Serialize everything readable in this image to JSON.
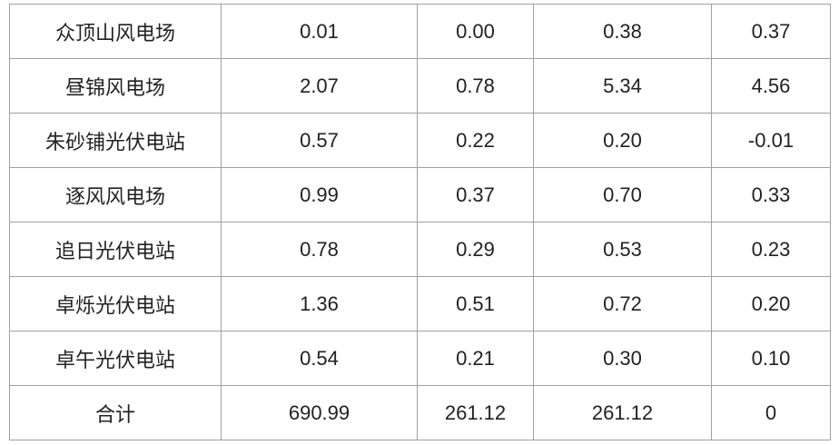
{
  "table": {
    "rows": [
      [
        "众顶山风电场",
        "0.01",
        "0.00",
        "0.38",
        "0.37"
      ],
      [
        "昼锦风电场",
        "2.07",
        "0.78",
        "5.34",
        "4.56"
      ],
      [
        "朱砂铺光伏电站",
        "0.57",
        "0.22",
        "0.20",
        "-0.01"
      ],
      [
        "逐风风电场",
        "0.99",
        "0.37",
        "0.70",
        "0.33"
      ],
      [
        "追日光伏电站",
        "0.78",
        "0.29",
        "0.53",
        "0.23"
      ],
      [
        "卓烁光伏电站",
        "1.36",
        "0.51",
        "0.72",
        "0.20"
      ],
      [
        "卓午光伏电站",
        "0.54",
        "0.21",
        "0.30",
        "0.10"
      ],
      [
        "合计",
        "690.99",
        "261.12",
        "261.12",
        "0"
      ]
    ]
  }
}
